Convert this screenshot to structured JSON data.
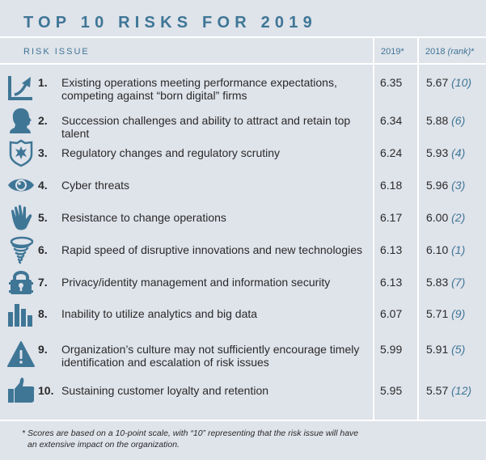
{
  "title": "TOP 10 RISKS FOR 2019",
  "header": {
    "risk_issue": "RISK ISSUE",
    "col_2019": "2019*",
    "col_2018_year": "2018",
    "col_2018_rank": "(rank)",
    "col_2018_star": "*"
  },
  "accent_color": "#3f7696",
  "risks": [
    {
      "num": "1.",
      "icon": "growth-chart-icon",
      "text": "Existing operations meeting performance expectations, competing against “born digital” firms",
      "score_2019": "6.35",
      "score_2018": "5.67",
      "rank_2018": "(10)"
    },
    {
      "num": "2.",
      "icon": "person-head-icon",
      "text": "Succession challenges and ability to attract and retain top talent",
      "score_2019": "6.34",
      "score_2018": "5.88",
      "rank_2018": "(6)"
    },
    {
      "num": "3.",
      "icon": "badge-shield-icon",
      "text": "Regulatory changes and regulatory scrutiny",
      "score_2019": "6.24",
      "score_2018": "5.93",
      "rank_2018": "(4)"
    },
    {
      "num": "4.",
      "icon": "eye-icon",
      "text": "Cyber threats",
      "score_2019": "6.18",
      "score_2018": "5.96",
      "rank_2018": "(3)"
    },
    {
      "num": "5.",
      "icon": "hand-icon",
      "text": "Resistance to change operations",
      "score_2019": "6.17",
      "score_2018": "6.00",
      "rank_2018": "(2)"
    },
    {
      "num": "6.",
      "icon": "tornado-icon",
      "text": "Rapid speed of disruptive innovations and new technologies",
      "score_2019": "6.13",
      "score_2018": "6.10",
      "rank_2018": "(1)"
    },
    {
      "num": "7.",
      "icon": "padlock-icon",
      "text": "Privacy/identity management and information security",
      "score_2019": "6.13",
      "score_2018": "5.83",
      "rank_2018": "(7)"
    },
    {
      "num": "8.",
      "icon": "bar-chart-icon",
      "text": "Inability to utilize analytics and big data",
      "score_2019": "6.07",
      "score_2018": "5.71",
      "rank_2018": "(9)"
    },
    {
      "num": "9.",
      "icon": "warning-triangle-icon",
      "text": "Organization’s culture may not sufficiently encourage timely identification and escalation of risk issues",
      "score_2019": "5.99",
      "score_2018": "5.91",
      "rank_2018": "(5)"
    },
    {
      "num": "10.",
      "icon": "thumbs-up-icon",
      "text": "Sustaining customer loyalty and retention",
      "score_2019": "5.95",
      "score_2018": "5.57",
      "rank_2018": "(12)"
    }
  ],
  "footnote": {
    "line1": "* Scores are based on a 10-point scale, with “10” representing that the risk issue will have",
    "line2": "an extensive impact on the organization."
  }
}
